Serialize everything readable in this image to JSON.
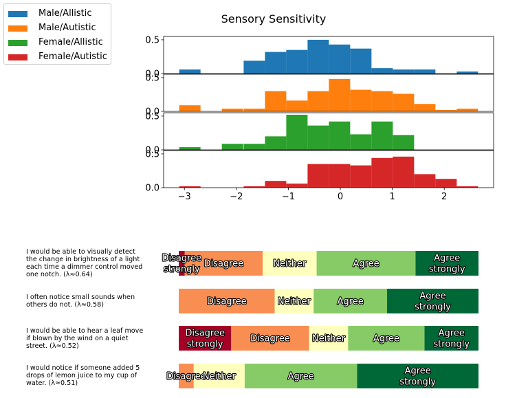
{
  "chart_data": [
    {
      "type": "bar",
      "title": "Sensory Sensitivity",
      "legend": {
        "placement": "top-left",
        "entries": [
          {
            "label": "Male/Allistic",
            "color": "#1f77b4"
          },
          {
            "label": "Male/Autistic",
            "color": "#ff7f0e"
          },
          {
            "label": "Female/Allistic",
            "color": "#2ca02c"
          },
          {
            "label": "Female/Autistic",
            "color": "#d62728"
          }
        ]
      },
      "bin_width": 0.41,
      "xlim": [
        -3.4,
        2.95
      ],
      "ylim": [
        0,
        0.55
      ],
      "xticks": [
        "−3",
        "−2",
        "−1",
        "0",
        "1",
        "2"
      ],
      "yticks": [
        "0.0",
        "0.5"
      ],
      "series": [
        {
          "name": "Male/Allistic",
          "color": "#1f77b4",
          "bins": [
            [
              -3.1,
              0.06
            ],
            [
              -1.86,
              0.19
            ],
            [
              -1.45,
              0.32
            ],
            [
              -1.04,
              0.35
            ],
            [
              -0.63,
              0.5
            ],
            [
              -0.22,
              0.43
            ],
            [
              0.19,
              0.37
            ],
            [
              0.6,
              0.08
            ],
            [
              1.01,
              0.06
            ],
            [
              1.42,
              0.06
            ],
            [
              2.24,
              0.03
            ]
          ]
        },
        {
          "name": "Male/Autistic",
          "color": "#ff7f0e",
          "bins": [
            [
              -3.1,
              0.09
            ],
            [
              -2.28,
              0.04
            ],
            [
              -1.86,
              0.04
            ],
            [
              -1.45,
              0.3
            ],
            [
              -1.04,
              0.16
            ],
            [
              -0.63,
              0.3
            ],
            [
              -0.22,
              0.48
            ],
            [
              0.19,
              0.32
            ],
            [
              0.6,
              0.3
            ],
            [
              1.01,
              0.26
            ],
            [
              1.42,
              0.11
            ],
            [
              1.83,
              0.02
            ],
            [
              2.24,
              0.04
            ]
          ]
        },
        {
          "name": "Female/Allistic",
          "color": "#2ca02c",
          "bins": [
            [
              -3.1,
              0.04
            ],
            [
              -2.28,
              0.09
            ],
            [
              -1.86,
              0.09
            ],
            [
              -1.45,
              0.2
            ],
            [
              -1.04,
              0.52
            ],
            [
              -0.63,
              0.36
            ],
            [
              -0.22,
              0.42
            ],
            [
              0.19,
              0.23
            ],
            [
              0.6,
              0.42
            ],
            [
              1.01,
              0.22
            ]
          ]
        },
        {
          "name": "Female/Autistic",
          "color": "#d62728",
          "bins": [
            [
              -3.1,
              0.02
            ],
            [
              -1.86,
              0.02
            ],
            [
              -1.45,
              0.1
            ],
            [
              -1.04,
              0.06
            ],
            [
              -0.63,
              0.35
            ],
            [
              -0.22,
              0.35
            ],
            [
              0.19,
              0.33
            ],
            [
              0.6,
              0.44
            ],
            [
              1.01,
              0.46
            ],
            [
              1.42,
              0.2
            ],
            [
              1.83,
              0.13
            ],
            [
              2.24,
              0.02
            ]
          ]
        }
      ]
    },
    {
      "type": "bar",
      "orientation": "horizontal-stacked",
      "colors": {
        "Disagree strongly": "#a50026",
        "Disagree": "#f98e52",
        "Neither": "#fefebd",
        "Agree": "#86cb66",
        "Agree strongly": "#006837"
      },
      "questions": [
        {
          "label": "I would be able to visually detect the change in brightness of a light each time a dimmer control moved one notch. (λ≈0.64)",
          "segments": [
            {
              "category": "Disagree strongly",
              "label": "Disagree strongly",
              "value": 0.02
            },
            {
              "category": "Disagree",
              "label": "Disagree",
              "value": 0.26
            },
            {
              "category": "Neither",
              "label": "Neither",
              "value": 0.18
            },
            {
              "category": "Agree",
              "label": "Agree",
              "value": 0.33
            },
            {
              "category": "Agree strongly",
              "label": "Agree strongly",
              "value": 0.21
            }
          ]
        },
        {
          "label": "I often notice small sounds when others do not. (λ≈0.58)",
          "segments": [
            {
              "category": "Disagree",
              "label": "Disagree",
              "value": 0.32
            },
            {
              "category": "Neither",
              "label": "Neither",
              "value": 0.13
            },
            {
              "category": "Agree",
              "label": "Agree",
              "value": 0.245
            },
            {
              "category": "Agree strongly",
              "label": "Agree strongly",
              "value": 0.305
            }
          ]
        },
        {
          "label": "I would be able to hear a leaf move if blown by the wind on a quiet street. (λ≈0.52)",
          "segments": [
            {
              "category": "Disagree strongly",
              "label": "Disagree strongly",
              "value": 0.175
            },
            {
              "category": "Disagree",
              "label": "Disagree",
              "value": 0.26
            },
            {
              "category": "Neither",
              "label": "Neither",
              "value": 0.13
            },
            {
              "category": "Agree",
              "label": "Agree",
              "value": 0.255
            },
            {
              "category": "Agree strongly",
              "label": "Agree strongly",
              "value": 0.18
            }
          ]
        },
        {
          "label": "I would notice if someone added 5 drops of lemon juice to my cup of water. (λ≈0.51)",
          "segments": [
            {
              "category": "Disagree",
              "label": "Disagree",
              "value": 0.05
            },
            {
              "category": "Neither",
              "label": "Neither",
              "value": 0.17
            },
            {
              "category": "Agree",
              "label": "Agree",
              "value": 0.375
            },
            {
              "category": "Agree strongly",
              "label": "Agree strongly",
              "value": 0.405
            }
          ]
        }
      ]
    }
  ]
}
